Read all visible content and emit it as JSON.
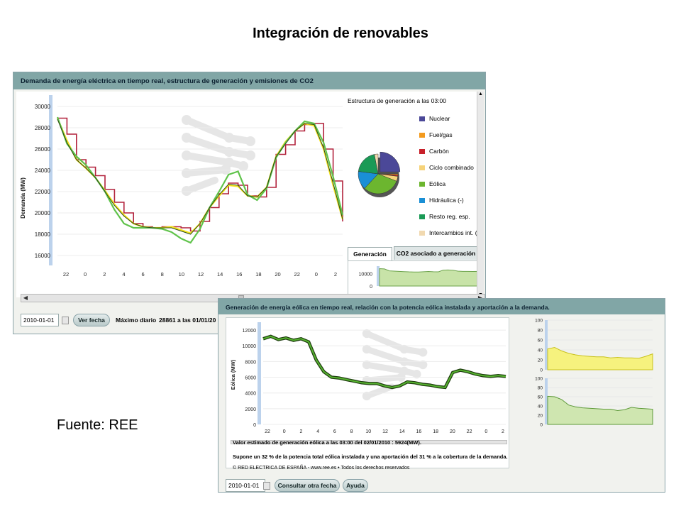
{
  "slide": {
    "title": "Integración de renovables",
    "source": "Fuente: REE"
  },
  "window1": {
    "title": "Demanda de energía eléctrica en tiempo real, estructura de generación y emisiones de CO2",
    "legend_title": "Estructura de generación a las 03:00",
    "legend": [
      {
        "label": "Nuclear",
        "color": "#4b4898"
      },
      {
        "label": "Fuel/gas",
        "color": "#f39a1e"
      },
      {
        "label": "Carbón",
        "color": "#c8202a"
      },
      {
        "label": "Ciclo combinado",
        "color": "#f6d37a"
      },
      {
        "label": "Eólica",
        "color": "#6cb62f"
      },
      {
        "label": "Hidráulica (-)",
        "color": "#1a8fd5"
      },
      {
        "label": "Resto reg. esp.",
        "color": "#1a9a56"
      },
      {
        "label": "Intercambios int. (-",
        "color": "#f1d9b0"
      }
    ],
    "tabs": {
      "generation": "Generación",
      "co2": "CO2 asociado a generación"
    },
    "date_value": "2010-01-01",
    "button_label": "Ver fecha",
    "max_label": "Máximo diario",
    "max_value": "28861 a las 01/01/20"
  },
  "window2": {
    "title": "Generación de energía eólica en tiempo real, relación con la potencia eólica instalada y aportación a la demanda.",
    "info1": "Valor estimado de generación eólica a las  03:00 del 02/01/2010  :  5924(MW).",
    "info2": "Supone un 32 % de la potencia total eólica instalada y una aportación del 31 % a la cobertura de la demanda.",
    "copyright": "© RED ELECTRICA DE ESPAÑA - www.ree.es • Todos los derechos reservados",
    "date_value": "2010-01-01",
    "button_other": "Consultar otra fecha",
    "button_help": "Ayuda"
  },
  "chart_data": [
    {
      "type": "line",
      "name": "demand",
      "ylabel": "Demanda (MW)",
      "ylim": [
        15000,
        31000
      ],
      "yticks": [
        16000,
        18000,
        20000,
        22000,
        24000,
        26000,
        28000,
        30000
      ],
      "x_ticks": [
        "22",
        "0",
        "2",
        "4",
        "6",
        "8",
        "10",
        "12",
        "14",
        "16",
        "18",
        "20",
        "22",
        "0",
        "2"
      ],
      "series": [
        {
          "color": "#b2223c",
          "values": [
            28900,
            27400,
            25000,
            24300,
            23500,
            22200,
            21000,
            20000,
            19000,
            18700,
            18600,
            18700,
            18700,
            18600,
            18300,
            19200,
            20500,
            21800,
            22800,
            22600,
            21600,
            21500,
            22400,
            25500,
            26400,
            27700,
            28300,
            28400,
            26000,
            23000,
            19200
          ]
        },
        {
          "color": "#f5e31c",
          "values": [
            28900,
            26800,
            25000,
            24200,
            23300,
            22100,
            20800,
            19800,
            19000,
            18700,
            18600,
            18600,
            18700,
            18400,
            18100,
            19000,
            20500,
            21600,
            22600,
            22500,
            21600,
            21500,
            22400,
            25300,
            26700,
            27700,
            28400,
            28200,
            26000,
            22600,
            19400
          ]
        },
        {
          "color": "#5fc34a",
          "values": [
            29000,
            26500,
            25300,
            24500,
            23300,
            22000,
            20300,
            19000,
            18600,
            18600,
            18600,
            18500,
            18200,
            17600,
            17200,
            18500,
            20500,
            22000,
            23600,
            23900,
            21700,
            21200,
            22300,
            25200,
            26600,
            27700,
            28600,
            28400,
            26600,
            23400,
            19800
          ]
        },
        {
          "color": "#2c4a16",
          "values": [
            28800,
            26600,
            25000,
            24200,
            23300,
            22000,
            20700,
            19700,
            19000,
            18700,
            18600,
            18600,
            18600,
            18300,
            18000,
            19000,
            20500,
            21700,
            22700,
            22600,
            21600,
            21500,
            22400,
            25300,
            26500,
            27700,
            28400,
            28300,
            26100,
            22800,
            19400
          ]
        }
      ]
    },
    {
      "type": "pie",
      "name": "generation-structure",
      "categories": [
        "Nuclear",
        "Fuel/gas",
        "Carbón",
        "Ciclo combinado",
        "Eólica",
        "Hidráulica (-)",
        "Resto reg. esp.",
        "Intercambios int. (-"
      ],
      "values": [
        25,
        1,
        1,
        4,
        31,
        15,
        20,
        3
      ]
    },
    {
      "type": "area",
      "name": "generation-mini",
      "yticks": [
        "10000",
        "0"
      ],
      "values": [
        14000,
        13800,
        12200,
        12000,
        11800,
        11600,
        11400,
        11300,
        11300,
        11500,
        11700,
        11500,
        11400,
        12800,
        12900,
        12700,
        12000,
        11800,
        11800,
        11700,
        11800
      ]
    },
    {
      "type": "line",
      "name": "wind",
      "ylabel": "Eólica (MW)",
      "ylim": [
        0,
        13000
      ],
      "yticks": [
        0,
        2000,
        4000,
        6000,
        8000,
        10000,
        12000
      ],
      "x_ticks": [
        "22",
        "0",
        "2",
        "4",
        "6",
        "8",
        "10",
        "12",
        "14",
        "16",
        "18",
        "20",
        "22",
        "0",
        "2"
      ],
      "values": [
        10900,
        11200,
        10800,
        11000,
        10700,
        10900,
        10500,
        8200,
        6700,
        6000,
        5900,
        5700,
        5500,
        5300,
        5200,
        5200,
        4900,
        4700,
        4900,
        5400,
        5300,
        5100,
        5000,
        4800,
        4700,
        6600,
        6900,
        6700,
        6400,
        6200,
        6100,
        6200,
        6100
      ]
    },
    {
      "type": "area",
      "name": "pct-installed",
      "yticks": [
        0,
        20,
        40,
        60,
        80,
        100
      ],
      "values": [
        42,
        45,
        38,
        33,
        30,
        28,
        27,
        26,
        26,
        24,
        25,
        24,
        24,
        23,
        27,
        32
      ]
    },
    {
      "type": "area",
      "name": "pct-demand",
      "yticks": [
        0,
        20,
        40,
        60,
        80,
        100
      ],
      "values": [
        61,
        60,
        54,
        42,
        38,
        36,
        35,
        34,
        33,
        33,
        30,
        32,
        37,
        35,
        34,
        33
      ]
    }
  ]
}
